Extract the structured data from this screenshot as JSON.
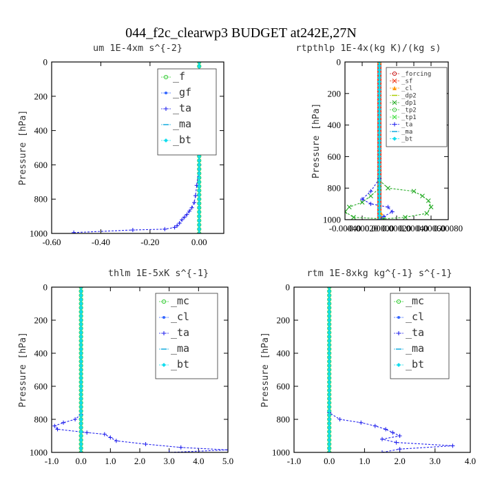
{
  "figure_title": "044_f2c_clearwp3  BUDGET at242E,27N",
  "chart_data": [
    {
      "type": "line",
      "title": "um  1E-4xm s^{-2}",
      "ylabel": "Pressure [hPa]",
      "xlim": [
        -0.6,
        0.1
      ],
      "ylim": [
        1000,
        0
      ],
      "xticks": [
        "-0.60",
        "-0.40",
        "-0.20",
        "0.00"
      ],
      "yticks": [
        "0",
        "200",
        "400",
        "600",
        "800",
        "1000"
      ],
      "legend_loc": "top-right",
      "series": [
        {
          "name": "_f",
          "color": "#33cc33",
          "marker": "circle",
          "points": [
            [
              0,
              0
            ],
            [
              0,
              100
            ],
            [
              0,
              200
            ],
            [
              0,
              300
            ],
            [
              0,
              400
            ],
            [
              0,
              500
            ],
            [
              0,
              600
            ],
            [
              0,
              700
            ],
            [
              0,
              800
            ],
            [
              0,
              900
            ],
            [
              0,
              1000
            ]
          ]
        },
        {
          "name": "_gf",
          "color": "#3366ff",
          "marker": "dot",
          "points": []
        },
        {
          "name": "_ta",
          "color": "#2222ee",
          "marker": "plus",
          "points": [
            [
              0,
              0
            ],
            [
              0,
              600
            ],
            [
              -0.01,
              720
            ],
            [
              -0.015,
              780
            ],
            [
              -0.02,
              820
            ],
            [
              -0.03,
              850
            ],
            [
              -0.04,
              870
            ],
            [
              -0.05,
              890
            ],
            [
              -0.06,
              905
            ],
            [
              -0.07,
              920
            ],
            [
              -0.08,
              940
            ],
            [
              -0.09,
              955
            ],
            [
              -0.1,
              965
            ],
            [
              -0.14,
              975
            ],
            [
              -0.27,
              980
            ],
            [
              -0.51,
              995
            ]
          ]
        },
        {
          "name": "_ma",
          "color": "#11aadd",
          "marker": "dash",
          "points": []
        },
        {
          "name": "_bt",
          "color": "#11ddee",
          "marker": "diamond",
          "points": [
            [
              0,
              0
            ],
            [
              0,
              1000
            ]
          ]
        }
      ]
    },
    {
      "type": "line",
      "title": "rtpthlp  1E-4x(kg K)/(kg s)",
      "ylabel": "Pressure [hPa]",
      "xlim": [
        -0.0004,
        0.0008
      ],
      "ylim": [
        1000,
        0
      ],
      "xticks": [
        "-0.00040",
        "-0.00020",
        "0.00000",
        "0.00020",
        "0.00040",
        "0.00060",
        "0.00080"
      ],
      "yticks": [
        "0",
        "200",
        "400",
        "600",
        "800",
        "1000"
      ],
      "legend_loc": "top-right",
      "series": [
        {
          "name": "_forcing",
          "color": "#cc2222",
          "marker": "circle",
          "points": [
            [
              0,
              0
            ],
            [
              0,
              1000
            ]
          ]
        },
        {
          "name": "_sf",
          "color": "#ee3311",
          "marker": "star",
          "points": [
            [
              0,
              0
            ],
            [
              0,
              1000
            ]
          ]
        },
        {
          "name": "_cl",
          "color": "#ff9900",
          "marker": "triangle",
          "points": [
            [
              0,
              0
            ],
            [
              0,
              900
            ],
            [
              2e-05,
              960
            ],
            [
              0,
              1000
            ]
          ]
        },
        {
          "name": "_dp2",
          "color": "#aacc00",
          "marker": "dash",
          "points": []
        },
        {
          "name": "_dp1",
          "color": "#22aa22",
          "marker": "cross",
          "points": [
            [
              0,
              750
            ],
            [
              0.0001,
              800
            ],
            [
              0.0004,
              820
            ],
            [
              0.0005,
              850
            ],
            [
              0.00057,
              880
            ],
            [
              0.0006,
              920
            ],
            [
              0.00055,
              960
            ],
            [
              0.0003,
              985
            ],
            [
              5e-05,
              995
            ],
            [
              -0.0003,
              985
            ],
            [
              -0.0004,
              950
            ],
            [
              -0.00035,
              920
            ],
            [
              -0.0002,
              890
            ],
            [
              -0.0001,
              850
            ],
            [
              0,
              800
            ]
          ]
        },
        {
          "name": "_tp2",
          "color": "#44cc44",
          "marker": "circle",
          "points": []
        },
        {
          "name": "_tp1",
          "color": "#33dd33",
          "marker": "cross",
          "points": []
        },
        {
          "name": "_ta",
          "color": "#2222ee",
          "marker": "plus",
          "points": [
            [
              0,
              740
            ],
            [
              -0.0001,
              820
            ],
            [
              -0.0002,
              870
            ],
            [
              -0.0001,
              900
            ],
            [
              0.0001,
              920
            ],
            [
              0.00015,
              950
            ],
            [
              5e-05,
              980
            ],
            [
              0,
              1000
            ]
          ]
        },
        {
          "name": "_ma",
          "color": "#11aadd",
          "marker": "dash",
          "points": []
        },
        {
          "name": "_bt",
          "color": "#11ddee",
          "marker": "diamond",
          "points": [
            [
              0,
              0
            ],
            [
              0,
              1000
            ]
          ]
        }
      ]
    },
    {
      "type": "line",
      "title": "thlm  1E-5xK s^{-1}",
      "ylabel": "Pressure [hPa]",
      "xlim": [
        -1.0,
        5.0
      ],
      "ylim": [
        1000,
        0
      ],
      "xticks": [
        "-1.0",
        "0.0",
        "1.0",
        "2.0",
        "3.0",
        "4.0",
        "5.0"
      ],
      "yticks": [
        "0",
        "200",
        "400",
        "600",
        "800",
        "1000"
      ],
      "legend_loc": "top-right",
      "series": [
        {
          "name": "_mc",
          "color": "#33cc33",
          "marker": "circle",
          "points": [
            [
              0,
              0
            ],
            [
              0,
              1000
            ]
          ]
        },
        {
          "name": "_cl",
          "color": "#3366ff",
          "marker": "dot",
          "points": []
        },
        {
          "name": "_ta",
          "color": "#2222ee",
          "marker": "plus",
          "points": [
            [
              0,
              0
            ],
            [
              0,
              770
            ],
            [
              -0.2,
              800
            ],
            [
              -0.6,
              820
            ],
            [
              -0.9,
              840
            ],
            [
              -0.8,
              860
            ],
            [
              0.2,
              880
            ],
            [
              0.8,
              890
            ],
            [
              1.0,
              910
            ],
            [
              1.2,
              930
            ],
            [
              2.2,
              950
            ],
            [
              3.4,
              970
            ],
            [
              5.0,
              985
            ],
            [
              3.0,
              1000
            ]
          ]
        },
        {
          "name": "_ma",
          "color": "#11aadd",
          "marker": "dash",
          "points": []
        },
        {
          "name": "_bt",
          "color": "#11ddee",
          "marker": "diamond",
          "points": [
            [
              0,
              0
            ],
            [
              0,
              1000
            ]
          ]
        }
      ]
    },
    {
      "type": "line",
      "title": "rtm  1E-8xkg kg^{-1} s^{-1}",
      "ylabel": "Pressure [hPa]",
      "xlim": [
        -1.0,
        4.0
      ],
      "ylim": [
        1000,
        0
      ],
      "xticks": [
        "-1.0",
        "0.0",
        "1.0",
        "2.0",
        "3.0",
        "4.0"
      ],
      "yticks": [
        "0",
        "200",
        "400",
        "600",
        "800",
        "1000"
      ],
      "legend_loc": "top-right",
      "series": [
        {
          "name": "_mc",
          "color": "#33cc33",
          "marker": "circle",
          "points": [
            [
              0,
              0
            ],
            [
              0,
              1000
            ]
          ]
        },
        {
          "name": "_cl",
          "color": "#3366ff",
          "marker": "dot",
          "points": []
        },
        {
          "name": "_ta",
          "color": "#2222ee",
          "marker": "plus",
          "points": [
            [
              0,
              0
            ],
            [
              0,
              760
            ],
            [
              0.3,
              800
            ],
            [
              0.9,
              820
            ],
            [
              1.3,
              840
            ],
            [
              1.6,
              860
            ],
            [
              1.8,
              880
            ],
            [
              2.0,
              900
            ],
            [
              1.5,
              920
            ],
            [
              1.9,
              940
            ],
            [
              3.5,
              960
            ],
            [
              2.0,
              980
            ],
            [
              1.5,
              1000
            ]
          ]
        },
        {
          "name": "_ma",
          "color": "#11aadd",
          "marker": "dash",
          "points": []
        },
        {
          "name": "_bt",
          "color": "#11ddee",
          "marker": "diamond",
          "points": [
            [
              0,
              0
            ],
            [
              0,
              1000
            ]
          ]
        }
      ]
    }
  ]
}
